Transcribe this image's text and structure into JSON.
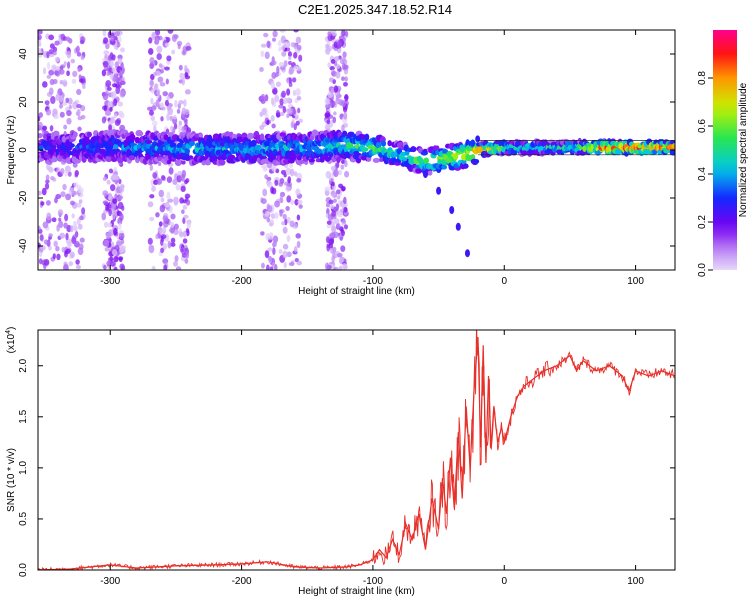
{
  "title": "C2E1.2025.347.18.52.R14",
  "chart_data": [
    {
      "type": "heatmap",
      "name": "spectrogram",
      "xlabel": "Height of straight line (km)",
      "ylabel": "Frequency (Hz)",
      "xlim": [
        -355,
        130
      ],
      "ylim": [
        -50,
        50
      ],
      "xticks": [
        -300,
        -200,
        -100,
        0,
        100
      ],
      "xtick_labels": [
        "-300",
        "-200",
        "-100",
        "0",
        "100"
      ],
      "yticks": [
        -40,
        -20,
        0,
        20,
        40
      ],
      "ytick_labels": [
        "-40",
        "-20",
        "0",
        "20",
        "40"
      ],
      "ridge": {
        "height_km": [
          -350,
          -300,
          -250,
          -200,
          -150,
          -120,
          -100,
          -80,
          -60,
          -50,
          -40,
          -30,
          -20,
          -10,
          0,
          20,
          50,
          80,
          100,
          130
        ],
        "frequency_hz": [
          1,
          1.5,
          0.5,
          0.5,
          1,
          2,
          1,
          -2,
          -5,
          -4,
          -3,
          -2,
          0,
          0.5,
          1,
          1,
          1,
          1,
          1,
          1
        ],
        "amplitude": [
          0.28,
          0.34,
          0.4,
          0.42,
          0.4,
          0.5,
          0.55,
          0.45,
          0.6,
          0.65,
          0.7,
          0.75,
          0.8,
          0.75,
          0.55,
          0.5,
          0.5,
          0.9,
          0.9,
          0.85
        ]
      },
      "branch": {
        "height_km": [
          -60,
          -50,
          -40,
          -35,
          -28
        ],
        "frequency_hz": [
          -10,
          -17,
          -25,
          -32,
          -43
        ]
      },
      "colorbar": {
        "label": "Normalized spectral amplitude",
        "range": [
          0,
          1
        ],
        "ticks": [
          0.0,
          0.2,
          0.4,
          0.6,
          0.8
        ],
        "tick_labels": [
          "0.0",
          "0.2",
          "0.4",
          "0.6",
          "0.8"
        ]
      }
    },
    {
      "type": "line",
      "name": "snr",
      "xlabel": "Height of straight line (km)",
      "ylabel": "SNR (10 * v/v)",
      "scale_label": "(x10",
      "scale_exponent": "4",
      "xlim": [
        -355,
        130
      ],
      "ylim": [
        0,
        2.35
      ],
      "xticks": [
        -300,
        -200,
        -100,
        0,
        100
      ],
      "xtick_labels": [
        "-300",
        "-200",
        "-100",
        "0",
        "100"
      ],
      "yticks": [
        0.0,
        0.5,
        1.0,
        1.5,
        2.0
      ],
      "ytick_labels": [
        "0.0",
        "0.5",
        "1.0",
        "1.5",
        "2.0"
      ],
      "color": "#e8302a",
      "x": [
        -355,
        -330,
        -300,
        -280,
        -250,
        -220,
        -200,
        -180,
        -160,
        -140,
        -120,
        -110,
        -100,
        -95,
        -90,
        -85,
        -80,
        -75,
        -70,
        -65,
        -60,
        -55,
        -50,
        -47,
        -44,
        -41,
        -38,
        -35,
        -32,
        -29,
        -26,
        -23,
        -20,
        -18,
        -16,
        -14,
        -12,
        -10,
        -8,
        -5,
        -2,
        0,
        5,
        10,
        15,
        20,
        30,
        40,
        50,
        55,
        60,
        70,
        80,
        90,
        95,
        100,
        110,
        120,
        130
      ],
      "y": [
        0.0,
        0.01,
        0.05,
        0.02,
        0.04,
        0.05,
        0.06,
        0.08,
        0.03,
        0.02,
        0.03,
        0.05,
        0.1,
        0.2,
        0.12,
        0.3,
        0.15,
        0.45,
        0.3,
        0.55,
        0.2,
        0.7,
        0.4,
        0.9,
        0.55,
        1.1,
        0.6,
        1.35,
        0.7,
        1.6,
        1.0,
        1.75,
        2.28,
        1.2,
        2.2,
        1.05,
        1.9,
        1.2,
        1.6,
        1.25,
        1.4,
        1.25,
        1.5,
        1.7,
        1.8,
        1.85,
        1.95,
        2.0,
        2.1,
        1.95,
        2.05,
        1.95,
        2.0,
        1.9,
        1.75,
        1.95,
        1.9,
        1.95,
        1.9
      ]
    }
  ]
}
